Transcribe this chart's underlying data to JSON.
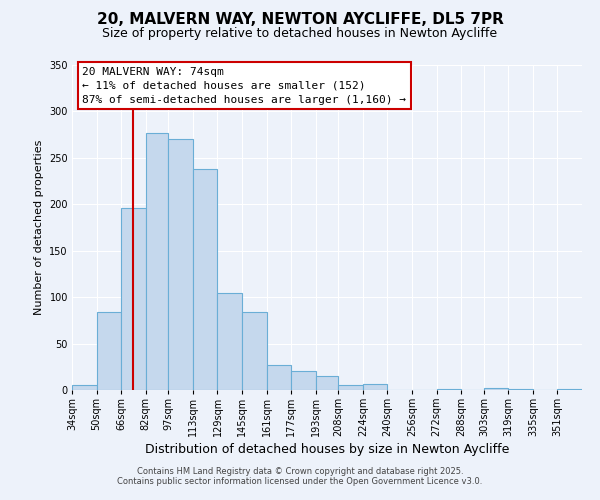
{
  "title": "20, MALVERN WAY, NEWTON AYCLIFFE, DL5 7PR",
  "subtitle": "Size of property relative to detached houses in Newton Aycliffe",
  "xlabel": "Distribution of detached houses by size in Newton Aycliffe",
  "ylabel": "Number of detached properties",
  "bar_color": "#c5d8ed",
  "bar_edge_color": "#6aaed6",
  "background_color": "#edf2fa",
  "grid_color": "#ffffff",
  "red_line_color": "#cc0000",
  "categories": [
    "34sqm",
    "50sqm",
    "66sqm",
    "82sqm",
    "97sqm",
    "113sqm",
    "129sqm",
    "145sqm",
    "161sqm",
    "177sqm",
    "193sqm",
    "208sqm",
    "224sqm",
    "240sqm",
    "256sqm",
    "272sqm",
    "288sqm",
    "303sqm",
    "319sqm",
    "335sqm",
    "351sqm"
  ],
  "values": [
    5,
    84,
    196,
    277,
    270,
    238,
    104,
    84,
    27,
    20,
    15,
    5,
    6,
    0,
    0,
    1,
    0,
    2,
    1,
    0,
    1
  ],
  "bin_edges": [
    34,
    50,
    66,
    82,
    97,
    113,
    129,
    145,
    161,
    177,
    193,
    208,
    224,
    240,
    256,
    272,
    288,
    303,
    319,
    335,
    351,
    367
  ],
  "ylim": [
    0,
    350
  ],
  "red_line_x": 74,
  "annotation_line1": "20 MALVERN WAY: 74sqm",
  "annotation_line2": "← 11% of detached houses are smaller (152)",
  "annotation_line3": "87% of semi-detached houses are larger (1,160) →",
  "footer_line1": "Contains HM Land Registry data © Crown copyright and database right 2025.",
  "footer_line2": "Contains public sector information licensed under the Open Government Licence v3.0.",
  "title_fontsize": 11,
  "subtitle_fontsize": 9,
  "tick_fontsize": 7,
  "ylabel_fontsize": 8,
  "xlabel_fontsize": 9,
  "annotation_fontsize": 8,
  "footer_fontsize": 6
}
